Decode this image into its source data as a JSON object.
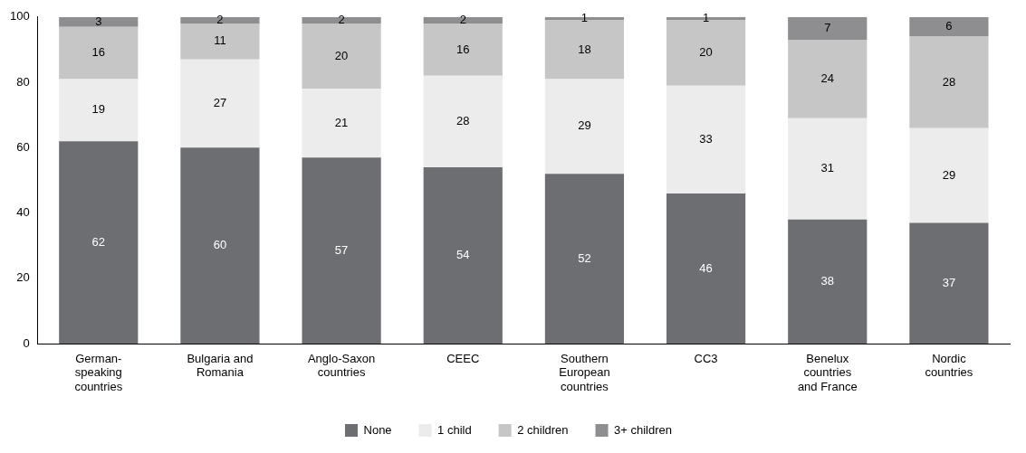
{
  "chart_data": {
    "type": "bar",
    "stacked": true,
    "data_labels": true,
    "legend": "bottom",
    "grid": false,
    "categories": [
      "German-\nspeaking\ncountries",
      "Bulgaria and\nRomania",
      "Anglo-Saxon\ncountries",
      "CEEC",
      "Southern\nEuropean\ncountries",
      "CC3",
      "Benelux\ncountries\nand France",
      "Nordic\ncountries"
    ],
    "series": [
      {
        "name": "None",
        "color": "#6d6e71",
        "values": [
          62,
          60,
          57,
          54,
          52,
          46,
          38,
          37
        ]
      },
      {
        "name": "1 child",
        "color": "#ececec",
        "values": [
          19,
          27,
          21,
          28,
          29,
          33,
          31,
          29
        ]
      },
      {
        "name": "2 children",
        "color": "#c6c6c6",
        "values": [
          16,
          11,
          20,
          16,
          18,
          20,
          24,
          28
        ]
      },
      {
        "name": "3+ children",
        "color": "#8e8e90",
        "values": [
          3,
          2,
          2,
          2,
          1,
          1,
          7,
          6
        ]
      }
    ],
    "ylim": [
      0,
      100
    ],
    "yticks": [
      0,
      20,
      40,
      60,
      80,
      100
    ]
  }
}
